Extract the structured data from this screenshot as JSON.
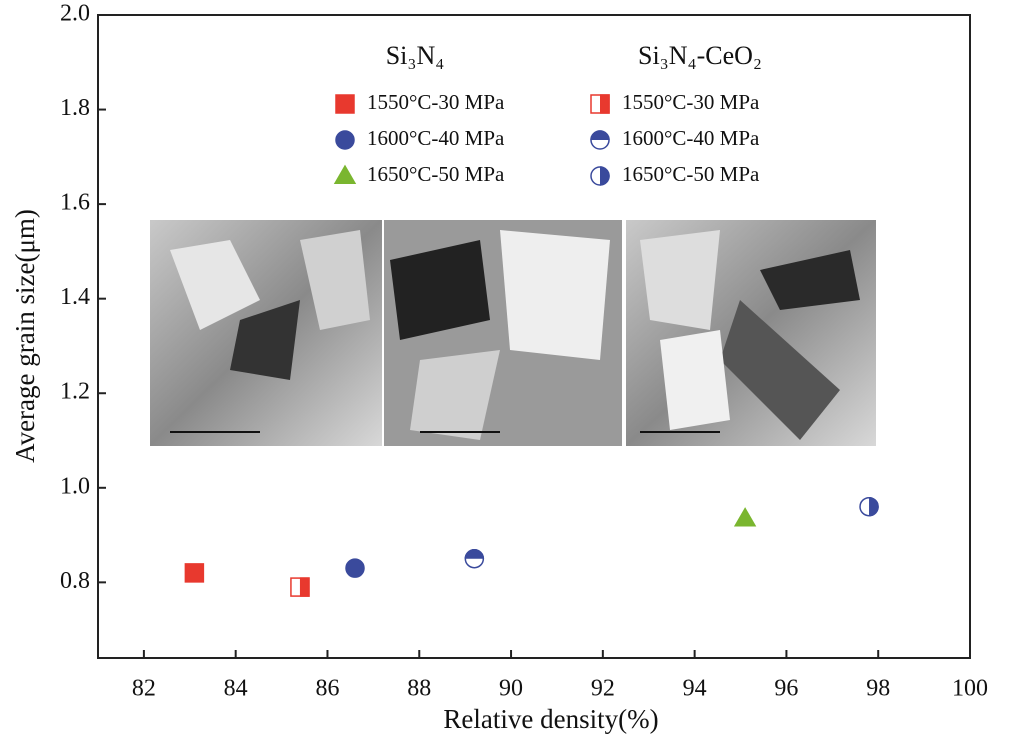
{
  "chart_data": {
    "type": "scatter",
    "x_label": "Relative density(%)",
    "y_label": "Average grain size(μm)",
    "xlim": [
      81,
      100
    ],
    "xticks": [
      82,
      84,
      86,
      88,
      90,
      92,
      94,
      96,
      98,
      100
    ],
    "ylim": [
      0.64,
      2.0
    ],
    "yticks": [
      {
        "value": 0.8,
        "label": "0.8"
      },
      {
        "value": 1.0,
        "label": "1.0"
      },
      {
        "value": 1.2,
        "label": "1.2"
      },
      {
        "value": 1.4,
        "label": "1.4"
      },
      {
        "value": 1.6,
        "label": "1.6"
      },
      {
        "value": 1.8,
        "label": "1.8"
      },
      {
        "value": 2.0,
        "label": "2.0"
      }
    ],
    "legend_columns": [
      "Si₃N₄",
      "Si₃N₄-CeO₂"
    ],
    "series": [
      {
        "name": "1550°C-30 MPa",
        "color": "#e8392e",
        "marker": "square",
        "fill": "full",
        "x": [
          83.1
        ],
        "values": [
          0.82
        ]
      },
      {
        "name": "1600°C-40 MPa",
        "color": "#3a4a9c",
        "marker": "circle",
        "fill": "full",
        "x": [
          86.6
        ],
        "values": [
          0.83
        ]
      },
      {
        "name": "1650°C-50 MPa",
        "color": "#7ab62f",
        "marker": "triangle",
        "fill": "full",
        "x": [
          95.1
        ],
        "values": [
          0.935
        ]
      },
      {
        "name": "1550°C-30 MPa",
        "color": "#e8392e",
        "marker": "square",
        "fill": "right",
        "x": [
          85.4
        ],
        "values": [
          0.79
        ]
      },
      {
        "name": "1600°C-40 MPa",
        "color": "#3a4a9c",
        "marker": "circle",
        "fill": "top",
        "x": [
          89.2
        ],
        "values": [
          0.85
        ]
      },
      {
        "name": "1650°C-50 MPa",
        "color": "#3a4a9c",
        "marker": "circle",
        "fill": "right",
        "x": [
          97.8
        ],
        "values": [
          0.96
        ]
      }
    ]
  }
}
